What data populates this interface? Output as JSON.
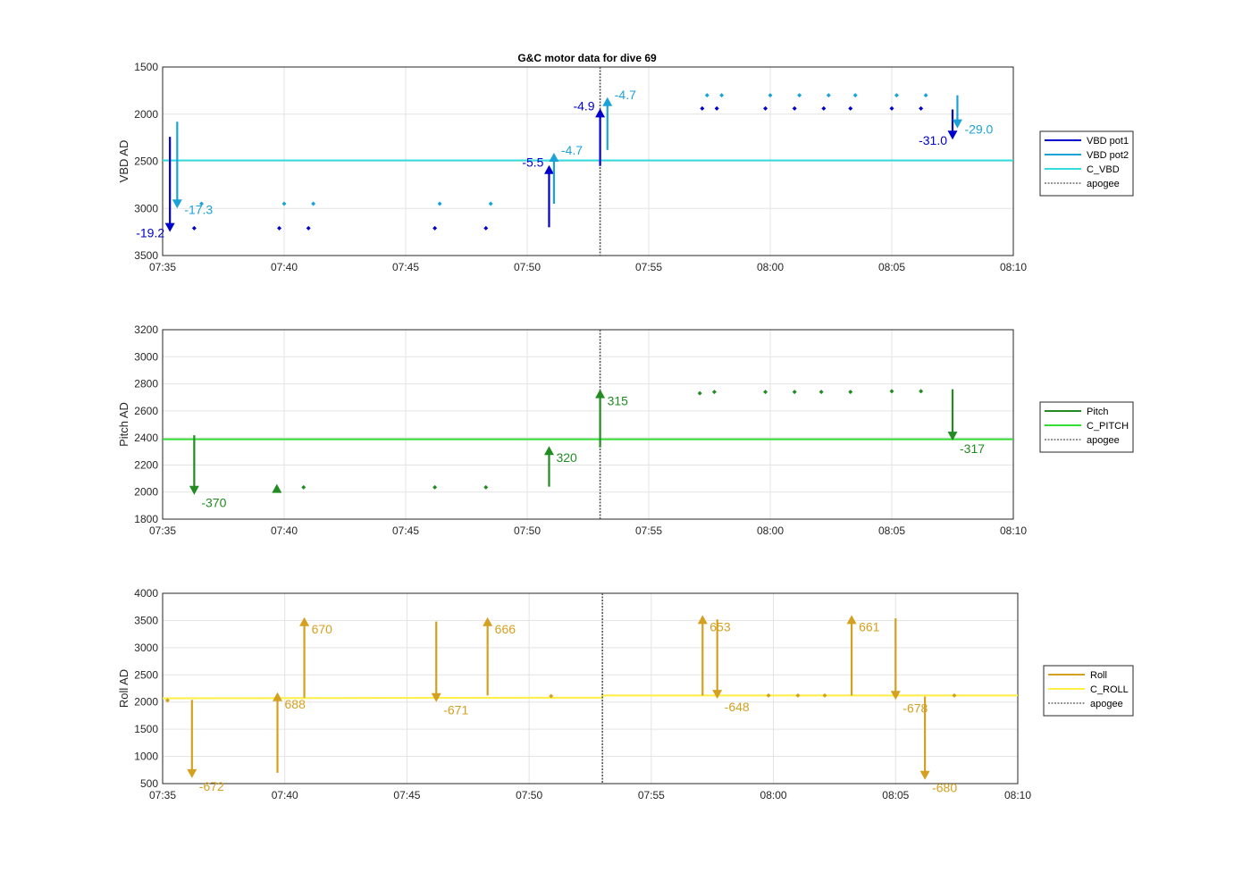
{
  "chart_data": [
    {
      "type": "line",
      "id": "vbd",
      "title": "G&C motor data for dive 69",
      "ylabel": "VBD AD",
      "ylim": [
        1500,
        3500
      ],
      "y_reversed": true,
      "yticks": [
        1500,
        2000,
        2500,
        3000,
        3500
      ],
      "xlim": [
        "07:35",
        "08:10"
      ],
      "xticks": [
        "07:35",
        "07:40",
        "07:45",
        "07:50",
        "07:55",
        "08:00",
        "08:05",
        "08:10"
      ],
      "grid": true,
      "legend_position": "right",
      "apogee": "07:53",
      "colors": {
        "pot1": "#0000cc",
        "pot2": "#1aa3d9",
        "cmd": "#33dddd",
        "apogee": "#555555"
      },
      "legend": [
        {
          "label": "VBD pot1",
          "color": "#0000cc",
          "dashed": false
        },
        {
          "label": "VBD pot2",
          "color": "#1aa3d9",
          "dashed": false
        },
        {
          "label": "C_VBD",
          "color": "#33dddd",
          "dashed": false
        },
        {
          "label": "apogee",
          "color": "#555555",
          "dashed": true
        }
      ],
      "commanded": [
        {
          "x": "07:35",
          "y": 2490
        },
        {
          "x": "08:10",
          "y": 2490
        }
      ],
      "moves": [
        {
          "x": "07:35.3",
          "y0": 2240,
          "y1": 3250,
          "label": "-19.2",
          "color": "#0000cc",
          "label_side": "left"
        },
        {
          "x": "07:35.6",
          "y0": 2080,
          "y1": 3000,
          "label": "-17.3",
          "color": "#1aa3d9",
          "label_side": "right"
        },
        {
          "x": "07:50.9",
          "y0": 3200,
          "y1": 2540,
          "label": "-5.5",
          "color": "#0000cc",
          "label_side": "left"
        },
        {
          "x": "07:51.1",
          "y0": 2950,
          "y1": 2410,
          "label": "-4.7",
          "color": "#1aa3d9",
          "label_side": "right"
        },
        {
          "x": "07:53.0",
          "y0": 2550,
          "y1": 1940,
          "label": "-4.9",
          "color": "#0000cc",
          "label_side": "left"
        },
        {
          "x": "07:53.3",
          "y0": 2380,
          "y1": 1820,
          "label": "-4.7",
          "color": "#1aa3d9",
          "label_side": "right"
        },
        {
          "x": "08:07.5",
          "y0": 1950,
          "y1": 2270,
          "label": "-31.0",
          "color": "#0000cc",
          "label_side": "left"
        },
        {
          "x": "08:07.7",
          "y0": 1800,
          "y1": 2150,
          "label": "-29.0",
          "color": "#1aa3d9",
          "label_side": "right"
        }
      ],
      "points": [
        {
          "x": "07:36.3",
          "y": 3210,
          "color": "#0000cc"
        },
        {
          "x": "07:36.6",
          "y": 2950,
          "color": "#1aa3d9"
        },
        {
          "x": "07:39.8",
          "y": 3210,
          "color": "#0000cc"
        },
        {
          "x": "07:40.0",
          "y": 2950,
          "color": "#1aa3d9"
        },
        {
          "x": "07:41.0",
          "y": 3210,
          "color": "#0000cc"
        },
        {
          "x": "07:41.2",
          "y": 2950,
          "color": "#1aa3d9"
        },
        {
          "x": "07:46.2",
          "y": 3210,
          "color": "#0000cc"
        },
        {
          "x": "07:46.4",
          "y": 2950,
          "color": "#1aa3d9"
        },
        {
          "x": "07:48.3",
          "y": 3210,
          "color": "#0000cc"
        },
        {
          "x": "07:48.5",
          "y": 2950,
          "color": "#1aa3d9"
        },
        {
          "x": "07:57.2",
          "y": 1940,
          "color": "#0000cc"
        },
        {
          "x": "07:57.4",
          "y": 1800,
          "color": "#1aa3d9"
        },
        {
          "x": "07:57.8",
          "y": 1940,
          "color": "#0000cc"
        },
        {
          "x": "07:58.0",
          "y": 1800,
          "color": "#1aa3d9"
        },
        {
          "x": "07:59.8",
          "y": 1940,
          "color": "#0000cc"
        },
        {
          "x": "08:00.0",
          "y": 1800,
          "color": "#1aa3d9"
        },
        {
          "x": "08:01.0",
          "y": 1940,
          "color": "#0000cc"
        },
        {
          "x": "08:01.2",
          "y": 1800,
          "color": "#1aa3d9"
        },
        {
          "x": "08:02.2",
          "y": 1940,
          "color": "#0000cc"
        },
        {
          "x": "08:02.4",
          "y": 1800,
          "color": "#1aa3d9"
        },
        {
          "x": "08:03.3",
          "y": 1940,
          "color": "#0000cc"
        },
        {
          "x": "08:03.5",
          "y": 1800,
          "color": "#1aa3d9"
        },
        {
          "x": "08:05.0",
          "y": 1940,
          "color": "#0000cc"
        },
        {
          "x": "08:05.2",
          "y": 1800,
          "color": "#1aa3d9"
        },
        {
          "x": "08:06.2",
          "y": 1940,
          "color": "#0000cc"
        },
        {
          "x": "08:06.4",
          "y": 1800,
          "color": "#1aa3d9"
        }
      ]
    },
    {
      "type": "line",
      "id": "pitch",
      "title": "",
      "ylabel": "Pitch AD",
      "ylim": [
        1800,
        3200
      ],
      "y_reversed": false,
      "yticks": [
        1800,
        2000,
        2200,
        2400,
        2600,
        2800,
        3000,
        3200
      ],
      "xlim": [
        "07:35",
        "08:10"
      ],
      "xticks": [
        "07:35",
        "07:40",
        "07:45",
        "07:50",
        "07:55",
        "08:00",
        "08:05",
        "08:10"
      ],
      "grid": true,
      "legend_position": "right",
      "apogee": "07:53",
      "colors": {
        "pitch": "#228b22",
        "cmd": "#33dd33",
        "apogee": "#555555"
      },
      "legend": [
        {
          "label": "Pitch",
          "color": "#228b22",
          "dashed": false
        },
        {
          "label": "C_PITCH",
          "color": "#33dd33",
          "dashed": false
        },
        {
          "label": "apogee",
          "color": "#555555",
          "dashed": true
        }
      ],
      "commanded": [
        {
          "x": "07:35",
          "y": 2390
        },
        {
          "x": "08:10",
          "y": 2390
        }
      ],
      "moves": [
        {
          "x": "07:36.3",
          "y0": 2420,
          "y1": 1980,
          "label": "-370",
          "color": "#228b22",
          "label_side": "right"
        },
        {
          "x": "07:39.7",
          "y0": 2000,
          "y1": 2060,
          "label": "",
          "color": "#228b22",
          "label_side": "right"
        },
        {
          "x": "07:50.9",
          "y0": 2040,
          "y1": 2340,
          "label": "320",
          "color": "#228b22",
          "label_side": "right"
        },
        {
          "x": "07:53.0",
          "y0": 2330,
          "y1": 2760,
          "label": "315",
          "color": "#228b22",
          "label_side": "right"
        },
        {
          "x": "08:07.5",
          "y0": 2760,
          "y1": 2380,
          "label": "-317",
          "color": "#228b22",
          "label_side": "right"
        }
      ],
      "points": [
        {
          "x": "07:40.8",
          "y": 2035,
          "color": "#228b22"
        },
        {
          "x": "07:46.2",
          "y": 2035,
          "color": "#228b22"
        },
        {
          "x": "07:48.3",
          "y": 2035,
          "color": "#228b22"
        },
        {
          "x": "07:57.1",
          "y": 2730,
          "color": "#228b22"
        },
        {
          "x": "07:57.7",
          "y": 2740,
          "color": "#228b22"
        },
        {
          "x": "07:59.8",
          "y": 2740,
          "color": "#228b22"
        },
        {
          "x": "08:01.0",
          "y": 2740,
          "color": "#228b22"
        },
        {
          "x": "08:02.1",
          "y": 2740,
          "color": "#228b22"
        },
        {
          "x": "08:03.3",
          "y": 2740,
          "color": "#228b22"
        },
        {
          "x": "08:05.0",
          "y": 2745,
          "color": "#228b22"
        },
        {
          "x": "08:06.2",
          "y": 2745,
          "color": "#228b22"
        }
      ]
    },
    {
      "type": "line",
      "id": "roll",
      "title": "",
      "ylabel": "Roll AD",
      "ylim": [
        500,
        4000
      ],
      "y_reversed": false,
      "yticks": [
        500,
        1000,
        1500,
        2000,
        2500,
        3000,
        3500,
        4000
      ],
      "xlim": [
        "07:35",
        "08:10"
      ],
      "xticks": [
        "07:35",
        "07:40",
        "07:45",
        "07:50",
        "07:55",
        "08:00",
        "08:05",
        "08:10"
      ],
      "grid": true,
      "legend_position": "right",
      "apogee": "07:53",
      "colors": {
        "roll": "#d4a020",
        "cmd": "#ffee44",
        "apogee": "#555555"
      },
      "legend": [
        {
          "label": "Roll",
          "color": "#d4a020",
          "dashed": false
        },
        {
          "label": "C_ROLL",
          "color": "#ffee44",
          "dashed": false
        },
        {
          "label": "apogee",
          "color": "#555555",
          "dashed": true
        }
      ],
      "commanded": [
        {
          "x": "07:35",
          "y": 2070
        },
        {
          "x": "07:53",
          "y": 2080
        },
        {
          "x": "07:53",
          "y": 2120
        },
        {
          "x": "08:10",
          "y": 2120
        }
      ],
      "moves": [
        {
          "x": "07:36.2",
          "y0": 2040,
          "y1": 600,
          "label": "-672",
          "color": "#d4a020",
          "label_side": "right"
        },
        {
          "x": "07:39.7",
          "y0": 700,
          "y1": 2180,
          "label": "688",
          "color": "#d4a020",
          "label_side": "right"
        },
        {
          "x": "07:40.8",
          "y0": 2080,
          "y1": 3560,
          "label": "670",
          "color": "#d4a020",
          "label_side": "right"
        },
        {
          "x": "07:46.2",
          "y0": 3480,
          "y1": 2000,
          "label": "-671",
          "color": "#d4a020",
          "label_side": "right"
        },
        {
          "x": "07:48.3",
          "y0": 2120,
          "y1": 3560,
          "label": "666",
          "color": "#d4a020",
          "label_side": "right"
        },
        {
          "x": "07:57.1",
          "y0": 2120,
          "y1": 3600,
          "label": "653",
          "color": "#d4a020",
          "label_side": "right"
        },
        {
          "x": "07:57.7",
          "y0": 3520,
          "y1": 2060,
          "label": "-648",
          "color": "#d4a020",
          "label_side": "right"
        },
        {
          "x": "08:03.2",
          "y0": 2120,
          "y1": 3600,
          "label": "661",
          "color": "#d4a020",
          "label_side": "right"
        },
        {
          "x": "08:05.0",
          "y0": 3540,
          "y1": 2040,
          "label": "-678",
          "color": "#d4a020",
          "label_side": "right"
        },
        {
          "x": "08:06.2",
          "y0": 2100,
          "y1": 570,
          "label": "-680",
          "color": "#d4a020",
          "label_side": "right"
        }
      ],
      "points": [
        {
          "x": "07:35.2",
          "y": 2030,
          "color": "#d4a020"
        },
        {
          "x": "07:50.9",
          "y": 2110,
          "color": "#d4a020"
        },
        {
          "x": "07:59.8",
          "y": 2120,
          "color": "#d4a020"
        },
        {
          "x": "08:01.0",
          "y": 2120,
          "color": "#d4a020"
        },
        {
          "x": "08:02.1",
          "y": 2120,
          "color": "#d4a020"
        },
        {
          "x": "08:07.4",
          "y": 2120,
          "color": "#d4a020"
        }
      ]
    }
  ]
}
